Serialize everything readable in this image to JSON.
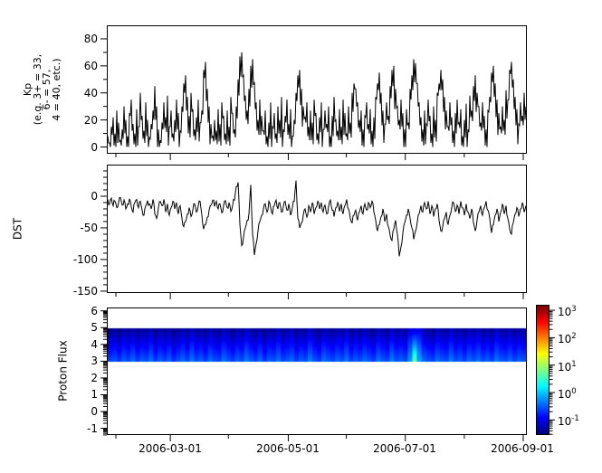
{
  "figure": {
    "background": "#ffffff",
    "line_color": "#000000"
  },
  "x_axis": {
    "tick_labels": [
      "2006-03-01",
      "2006-05-01",
      "2006-07-01",
      "2006-09-01"
    ],
    "major_fracs": [
      0.1512,
      0.432,
      0.7106,
      0.9914
    ],
    "minor_fracs": [
      0.0216,
      0.2894,
      0.5702,
      0.851
    ]
  },
  "chart_data": [
    {
      "type": "line",
      "name": "kp-index",
      "ylabel_lines": [
        "Kp",
        "(e.g. 3+ = 33,",
        "6- = 57,",
        "4 = 40, etc.)"
      ],
      "ylim": [
        -5,
        90
      ],
      "yticks": [
        80,
        60,
        40,
        20,
        0
      ],
      "yminorticks": [
        70,
        50,
        30,
        10
      ],
      "values": [
        8,
        3,
        15,
        22,
        10,
        27,
        18,
        5,
        13,
        30,
        20,
        8,
        25,
        35,
        17,
        10,
        28,
        15,
        40,
        23,
        12,
        33,
        20,
        7,
        17,
        27,
        45,
        30,
        13,
        5,
        18,
        33,
        22,
        38,
        15,
        27,
        10,
        20,
        35,
        25,
        12,
        30,
        47,
        53,
        37,
        23,
        40,
        28,
        13,
        22,
        35,
        18,
        27,
        57,
        63,
        43,
        30,
        17,
        8,
        20,
        12,
        28,
        17,
        33,
        23,
        10,
        27,
        15,
        37,
        25,
        13,
        30,
        50,
        67,
        70,
        53,
        38,
        27,
        43,
        60,
        65,
        48,
        33,
        20,
        35,
        23,
        12,
        27,
        8,
        18,
        33,
        15,
        25,
        10,
        30,
        20,
        37,
        13,
        23,
        35,
        17,
        28,
        8,
        20,
        40,
        53,
        57,
        43,
        30,
        22,
        33,
        15,
        27,
        18,
        35,
        25,
        10,
        22,
        33,
        13,
        27,
        17,
        30,
        8,
        23,
        37,
        20,
        12,
        28,
        15,
        35,
        25,
        10,
        30,
        18,
        40,
        47,
        43,
        33,
        20,
        27,
        13,
        23,
        33,
        17,
        28,
        12,
        22,
        37,
        47,
        55,
        40,
        27,
        17,
        33,
        23,
        45,
        57,
        60,
        43,
        30,
        20,
        35,
        25,
        13,
        28,
        18,
        43,
        53,
        65,
        62,
        47,
        33,
        22,
        13,
        27,
        17,
        35,
        23,
        10,
        30,
        20,
        40,
        47,
        57,
        50,
        37,
        27,
        15,
        33,
        22,
        12,
        25,
        35,
        18,
        28,
        8,
        20,
        32,
        13,
        38,
        27,
        45,
        53,
        40,
        30,
        18,
        33,
        23,
        13,
        27,
        37,
        55,
        60,
        47,
        35,
        25,
        15,
        30,
        20,
        42,
        35,
        57,
        63,
        50,
        37,
        28,
        17,
        33,
        23,
        40,
        30
      ]
    },
    {
      "type": "line",
      "name": "dst-index",
      "ylabel": "DST",
      "ylim": [
        -153,
        50
      ],
      "yticks": [
        0,
        -50,
        -100,
        -150
      ],
      "yminorticks": [
        40,
        30,
        20,
        10,
        -10,
        -20,
        -30,
        -40,
        -60,
        -70,
        -80,
        -90,
        -110,
        -120,
        -130,
        -140
      ],
      "values": [
        -5,
        -12,
        -3,
        -15,
        -8,
        -18,
        -10,
        -2,
        -14,
        -6,
        -20,
        -12,
        -4,
        -16,
        -25,
        -10,
        -5,
        -18,
        -8,
        -22,
        -30,
        -15,
        -7,
        -12,
        -20,
        -5,
        -28,
        -35,
        -18,
        -8,
        -15,
        -5,
        -25,
        -12,
        -30,
        -18,
        -8,
        -20,
        -10,
        -28,
        -15,
        -35,
        -48,
        -40,
        -28,
        -18,
        -32,
        -22,
        -12,
        -25,
        -15,
        -8,
        -30,
        -52,
        -45,
        -33,
        -22,
        -14,
        -6,
        -16,
        -8,
        -20,
        -12,
        -26,
        -15,
        -7,
        -18,
        -10,
        -24,
        -14,
        -6,
        15,
        22,
        -45,
        -78,
        -65,
        -50,
        -38,
        -28,
        18,
        -60,
        -93,
        -75,
        -55,
        -40,
        -30,
        -20,
        -12,
        -25,
        -8,
        -18,
        -28,
        -15,
        -6,
        -20,
        -10,
        -25,
        -16,
        -8,
        -22,
        -12,
        -30,
        -18,
        -8,
        25,
        -35,
        -50,
        -42,
        -30,
        -20,
        -33,
        -15,
        -25,
        -10,
        -28,
        -18,
        -8,
        -20,
        -10,
        -25,
        -14,
        -28,
        -16,
        -6,
        -22,
        -32,
        -18,
        -10,
        -24,
        -12,
        -28,
        -15,
        -5,
        -20,
        -35,
        -42,
        -30,
        -22,
        -38,
        -25,
        -15,
        -28,
        -12,
        -22,
        -10,
        -18,
        -8,
        -25,
        -38,
        -55,
        -45,
        -32,
        -20,
        -40,
        -28,
        -48,
        -62,
        -70,
        -52,
        -38,
        -60,
        -95,
        -80,
        -58,
        -42,
        -30,
        -20,
        -35,
        -50,
        -68,
        -55,
        -40,
        -28,
        -15,
        -25,
        -10,
        -20,
        -8,
        -28,
        -15,
        -32,
        -20,
        -12,
        -38,
        -55,
        -48,
        -35,
        -25,
        -45,
        -30,
        -18,
        -10,
        -24,
        -14,
        -28,
        -8,
        -18,
        -30,
        -12,
        -25,
        -35,
        -20,
        -42,
        -55,
        -38,
        -25,
        -15,
        -30,
        -18,
        -8,
        -22,
        -35,
        -58,
        -45,
        -30,
        -20,
        -40,
        -25,
        -12,
        -28,
        -15,
        -35,
        -52,
        -60,
        -42,
        -28,
        -18,
        -32,
        -20,
        -10,
        -25,
        -15
      ]
    },
    {
      "type": "heatmap",
      "name": "proton-flux-spectrogram",
      "ylabel": "Proton Flux",
      "ylim": [
        -1.4,
        6.2
      ],
      "yticks": [
        6,
        5,
        4,
        3,
        2,
        1,
        0,
        -1
      ],
      "log_minor_ticks": true,
      "band": {
        "y_bottom": 3,
        "y_top": 5,
        "falloff_per_unit": 0.45,
        "spike_falloff": 0.95
      },
      "columns_log10_flux": [
        -0.62,
        -0.55,
        -0.68,
        -0.5,
        -0.6,
        -0.45,
        -0.65,
        -0.52,
        -0.58,
        -0.42,
        -0.66,
        -0.5,
        -0.62,
        -0.48,
        -0.7,
        -0.55,
        -0.45,
        -0.6,
        -0.38,
        -0.58,
        -0.5,
        -0.66,
        -0.44,
        -0.56,
        -0.62,
        -0.4,
        -0.54,
        -0.65,
        -0.48,
        -0.58,
        -0.36,
        -0.52,
        -0.62,
        -0.45,
        -0.68,
        -0.5,
        -0.56,
        -0.4,
        -0.6,
        -0.52,
        -0.44,
        -0.64,
        -0.5,
        -0.58,
        -0.35,
        -0.55,
        -0.65,
        -0.42,
        -0.52,
        -0.6,
        -0.46,
        -0.56,
        -0.38,
        -0.62,
        -0.5,
        -0.58,
        -0.44,
        -0.54,
        -0.64,
        -0.4,
        -0.52,
        -0.6,
        -0.35,
        -0.55,
        -0.48,
        -0.58,
        -0.2,
        0.7,
        -0.15,
        -0.45,
        -0.55,
        -0.62,
        -0.42,
        -0.52,
        -0.58,
        -0.36,
        -0.56,
        -0.48,
        -0.62,
        -0.44,
        -0.54,
        -0.4,
        -0.58,
        -0.5,
        -0.62,
        -0.38,
        -0.52,
        -0.56,
        -0.44,
        -0.6,
        -0.48,
        -0.54
      ],
      "colorbar": {
        "scale": "log",
        "colormap": "jet",
        "tick_exponents": [
          3,
          2,
          1,
          0,
          -1
        ],
        "vmax_log10": 3.2,
        "vmin_log10": -1.55
      }
    }
  ]
}
